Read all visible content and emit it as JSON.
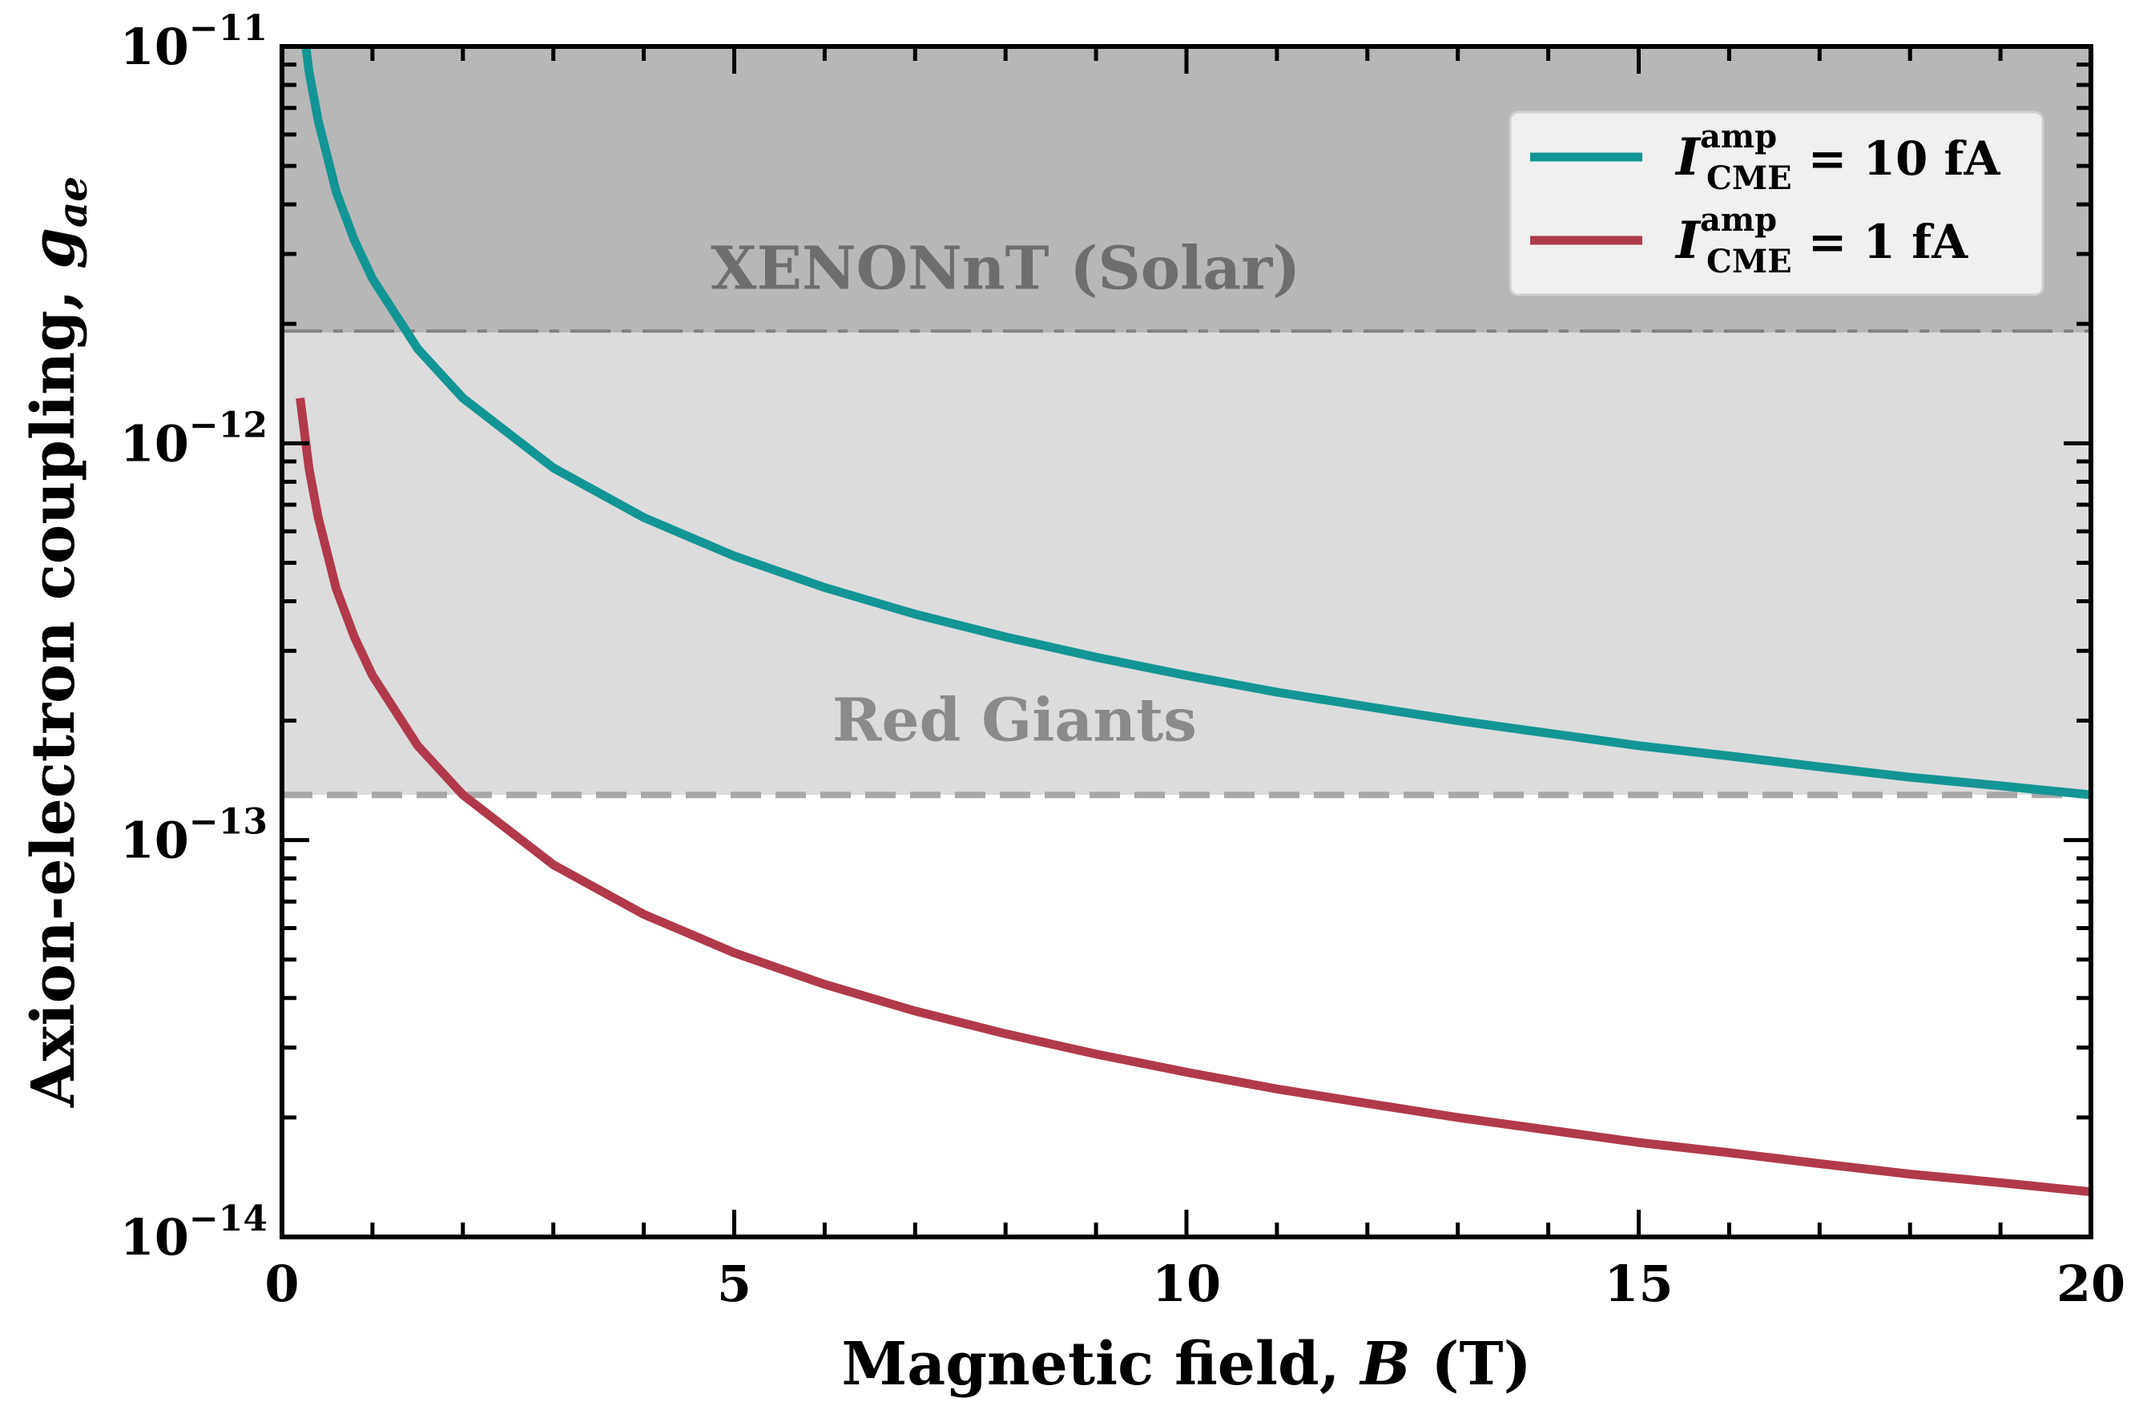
{
  "chart_data": {
    "type": "line",
    "x_axis": {
      "label_prefix": "Magnetic field, ",
      "label_symbol": "B",
      "label_unit": " (T)",
      "ticks": [
        "0",
        "5",
        "10",
        "15",
        "20"
      ],
      "range": [
        0,
        20
      ]
    },
    "y_axis": {
      "label_prefix": "Axion-electron coupling, ",
      "label_symbol": "g",
      "label_subscript": "ae",
      "scale": "log",
      "range": [
        1e-14,
        1e-11
      ],
      "ticks": [
        {
          "value": 1e-14,
          "base": "10",
          "exp": "−14"
        },
        {
          "value": 1e-13,
          "base": "10",
          "exp": "−13"
        },
        {
          "value": 1e-12,
          "base": "10",
          "exp": "−12"
        },
        {
          "value": 1e-11,
          "base": "10",
          "exp": "−11"
        }
      ]
    },
    "bands": [
      {
        "label": "XENONnT (Solar)",
        "lower": 1.9e-12,
        "upper": 1e-11,
        "fill": "#b7b7b7",
        "line_style": "dashdot",
        "line_color": "#808080",
        "text_color": "#6e6e6e"
      },
      {
        "label": "Red Giants",
        "lower": 1.3e-13,
        "upper": 1.9e-12,
        "fill": "#dcdcdc",
        "line_style": "dashed",
        "line_color": "#a8a8a8",
        "text_color": "#8a8a8a"
      }
    ],
    "series": [
      {
        "name": "I_CME^amp = 10 fA",
        "symbol": "I",
        "sup": "amp",
        "sub": "CME",
        "value_text": "= 10 fA",
        "color": "#139594",
        "x": [
          0.2,
          0.3,
          0.4,
          0.6,
          0.8,
          1.0,
          1.5,
          2,
          3,
          4,
          5,
          6,
          7,
          8,
          9,
          10,
          11,
          12,
          13,
          14,
          15,
          16,
          17,
          18,
          19,
          20
        ],
        "y": [
          1.3e-11,
          8.6e-12,
          6.5e-12,
          4.3e-12,
          3.25e-12,
          2.6e-12,
          1.73e-12,
          1.3e-12,
          8.67e-13,
          6.5e-13,
          5.2e-13,
          4.33e-13,
          3.71e-13,
          3.25e-13,
          2.89e-13,
          2.6e-13,
          2.36e-13,
          2.17e-13,
          2e-13,
          1.86e-13,
          1.73e-13,
          1.63e-13,
          1.53e-13,
          1.44e-13,
          1.37e-13,
          1.3e-13
        ]
      },
      {
        "name": "I_CME^amp = 1 fA",
        "symbol": "I",
        "sup": "amp",
        "sub": "CME",
        "value_text": "= 1 fA",
        "color": "#b03a4b",
        "x": [
          0.2,
          0.3,
          0.4,
          0.6,
          0.8,
          1.0,
          1.5,
          2,
          3,
          4,
          5,
          6,
          7,
          8,
          9,
          10,
          11,
          12,
          13,
          14,
          15,
          16,
          17,
          18,
          19,
          20
        ],
        "y": [
          1.3e-12,
          8.6e-13,
          6.5e-13,
          4.3e-13,
          3.25e-13,
          2.6e-13,
          1.73e-13,
          1.3e-13,
          8.67e-14,
          6.5e-14,
          5.2e-14,
          4.33e-14,
          3.71e-14,
          3.25e-14,
          2.89e-14,
          2.6e-14,
          2.36e-14,
          2.17e-14,
          2e-14,
          1.86e-14,
          1.73e-14,
          1.63e-14,
          1.53e-14,
          1.44e-14,
          1.37e-14,
          1.3e-14
        ]
      }
    ],
    "legend_position": "top-right",
    "grid": false
  }
}
